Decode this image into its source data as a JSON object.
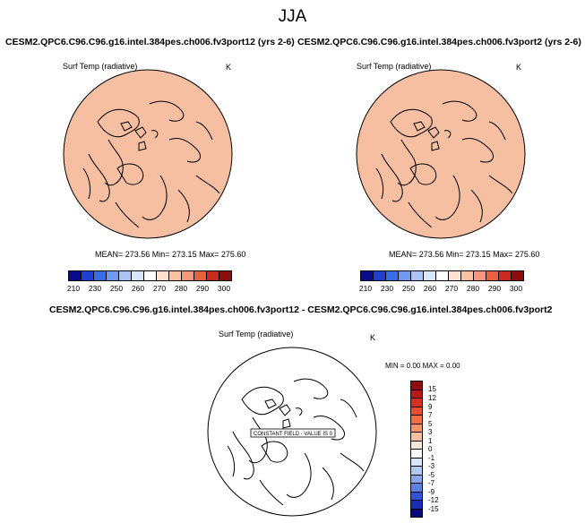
{
  "main_title": "JJA",
  "panels": [
    {
      "title": "CESM2.QPC6.C96.C96.g16.intel.384pes.ch006.fv3port12 (yrs 2-6)",
      "variable": "Surf Temp (radiative)",
      "units": "K",
      "stats": "MEAN= 273.56  Min= 273.15  Max= 275.60",
      "fill_color": "#f6bfa1"
    },
    {
      "title": "CESM2.QPC6.C96.C96.g16.intel.384pes.ch006.fv3port2 (yrs 2-6)",
      "variable": "Surf Temp (radiative)",
      "units": "K",
      "stats": "MEAN= 273.56  Min= 273.15  Max= 275.60",
      "fill_color": "#f6bfa1"
    }
  ],
  "colorbar_horizontal": {
    "labels": [
      "210",
      "230",
      "250",
      "260",
      "270",
      "280",
      "290",
      "300"
    ],
    "colors": [
      "#0a0a8c",
      "#1f3fd1",
      "#3a6ee8",
      "#6f9af0",
      "#a9c3f5",
      "#d9e6fa",
      "#ffffff",
      "#fde3cf",
      "#f9c1a2",
      "#f4977a",
      "#e8603f",
      "#c92b1c",
      "#8f0d0d"
    ]
  },
  "diff_panel": {
    "title": "CESM2.QPC6.C96.C96.g16.intel.384pes.ch006.fv3port12 - CESM2.QPC6.C96.C96.g16.intel.384pes.ch006.fv3port2",
    "variable": "Surf Temp (radiative)",
    "units": "K",
    "minmax": "MIN =   0.00 MAX =   0.00",
    "constant_label": "CONSTANT FIELD - VALUE IS 0"
  },
  "colorbar_vertical": {
    "labels": [
      "15",
      "12",
      "9",
      "7",
      "5",
      "3",
      "1",
      "0",
      "-1",
      "-3",
      "-5",
      "-7",
      "-9",
      "-12",
      "-15"
    ],
    "colors": [
      "#8f0d0d",
      "#b51a14",
      "#d2321f",
      "#e6502e",
      "#f07040",
      "#f69367",
      "#fbbf9e",
      "#fde5d4",
      "#ffffff",
      "#d8e4f8",
      "#b0c8f2",
      "#86a8ec",
      "#5a82e3",
      "#2f55d6",
      "#1a2fb0",
      "#0a0a7e"
    ]
  }
}
